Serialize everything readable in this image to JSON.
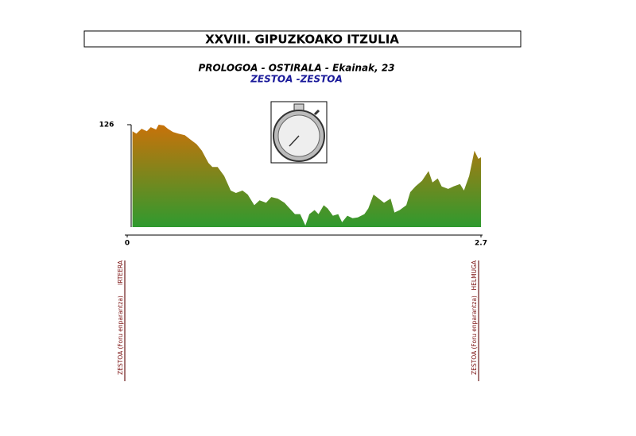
{
  "chart_data": {
    "type": "area",
    "title": "XXVIII. GIPUZKOAKO ITZULIA",
    "subtitle": "PROLOGOA - OSTIRALA - Ekainak, 23",
    "route": "ZESTOA -ZESTOA",
    "x": [
      0.04,
      0.07,
      0.11,
      0.15,
      0.18,
      0.22,
      0.24,
      0.28,
      0.31,
      0.35,
      0.39,
      0.44,
      0.48,
      0.53,
      0.57,
      0.62,
      0.65,
      0.69,
      0.74,
      0.79,
      0.83,
      0.88,
      0.92,
      0.97,
      1.01,
      1.06,
      1.1,
      1.15,
      1.2,
      1.24,
      1.28,
      1.32,
      1.36,
      1.39,
      1.43,
      1.46,
      1.5,
      1.53,
      1.57,
      1.61,
      1.64,
      1.68,
      1.72,
      1.76,
      1.81,
      1.84,
      1.88,
      1.92,
      1.96,
      2.01,
      2.04,
      2.08,
      2.13,
      2.16,
      2.2,
      2.25,
      2.3,
      2.33,
      2.37,
      2.4,
      2.45,
      2.49,
      2.54,
      2.57,
      2.61,
      2.65,
      2.68,
      2.7
    ],
    "values": [
      118,
      115,
      121,
      118,
      123,
      120,
      126,
      125,
      121,
      117,
      115,
      113,
      108,
      102,
      94,
      79,
      74,
      74,
      63,
      45,
      42,
      45,
      40,
      27,
      33,
      30,
      37,
      35,
      30,
      23,
      16,
      16,
      2,
      16,
      21,
      16,
      27,
      23,
      14,
      16,
      6,
      14,
      11,
      12,
      16,
      23,
      40,
      35,
      30,
      35,
      18,
      21,
      27,
      43,
      50,
      57,
      69,
      55,
      60,
      50,
      47,
      50,
      53,
      45,
      63,
      94,
      84,
      86
    ],
    "colors": {
      "top": "#c8720a",
      "bottom": "#2f9a2f"
    },
    "xlim": [
      0,
      2.7
    ],
    "ylim": [
      0,
      126
    ],
    "xticks": [
      0,
      2.7
    ],
    "yticks": [
      126
    ],
    "markers": [
      {
        "x": 0,
        "label": "IRTEERA",
        "place": "ZESTOA (Foru enparantza)"
      },
      {
        "x": 2.7,
        "label": "HELMUGA",
        "place": "ZESTOA (Foru enparantza)"
      }
    ]
  }
}
